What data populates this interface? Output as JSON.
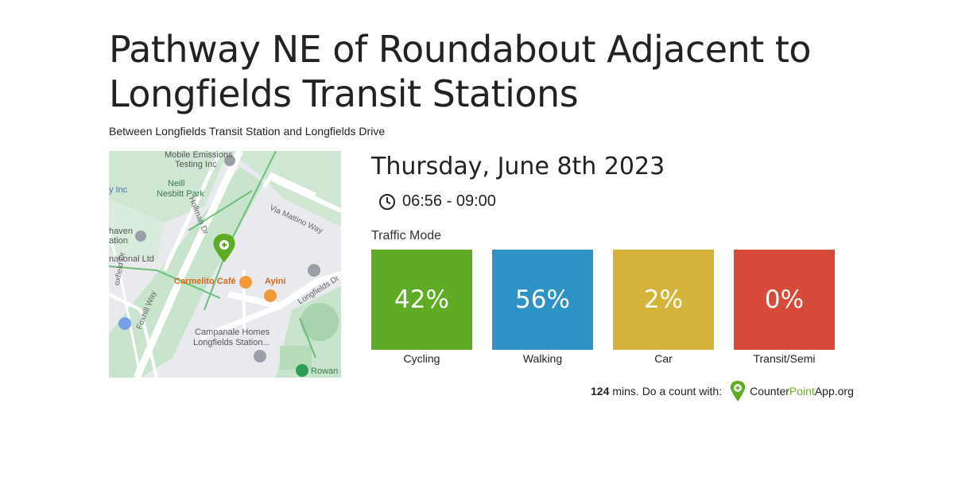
{
  "header": {
    "title": "Pathway NE of Roundabout Adjacent to Longfields Transit Stations",
    "subtitle": "Between Longfields Transit Station and Longfields Drive"
  },
  "map": {
    "labels": {
      "mobile_emissions": "Mobile Emissions",
      "testing_inc": "Testing Inc",
      "neill": "Neill",
      "nesbitt_park": "Nesbitt Park",
      "y_inc": "y Inc",
      "haven": "haven",
      "ation": "ation",
      "national_ltd": "national Ltd",
      "carmelito_cafe": "Carmelito Café",
      "ayini": "Ayini",
      "campanale_homes": "Campanale Homes",
      "longfields_station": "Longfields Station...",
      "rowan": "Rowan",
      "hollman_dr": "Hollman Dr",
      "via_mattino_way": "Via Mattino Way",
      "longfields_dr": "Longfields Dr",
      "oxfield_dr": "oxfield Dr",
      "foxhill_way": "Foxhill Way"
    }
  },
  "session": {
    "date": "Thursday, June 8th 2023",
    "time_range": "06:56 - 09:00"
  },
  "traffic_mode": {
    "title": "Traffic Mode",
    "modes": [
      {
        "label": "Cycling",
        "value": "42%",
        "color": "#5fac24"
      },
      {
        "label": "Walking",
        "value": "56%",
        "color": "#2d93c4"
      },
      {
        "label": "Car",
        "value": "2%",
        "color": "#d4b33b"
      },
      {
        "label": "Transit/Semi",
        "value": "0%",
        "color": "#d54a38"
      }
    ]
  },
  "footer": {
    "minutes": "124",
    "text": "mins. Do a count with:",
    "brand_counter": "Counter",
    "brand_point": "Point",
    "brand_app": "App.org"
  }
}
